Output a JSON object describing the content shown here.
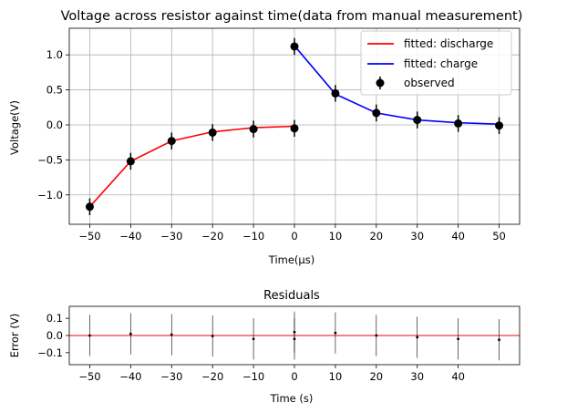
{
  "chart_data": [
    {
      "type": "line",
      "title": "Voltage across resistor against time(data from manual measurement)",
      "xlabel": "Time(μs)",
      "ylabel": "Voltage(V)",
      "xlim": [
        -55,
        55
      ],
      "ylim": [
        -1.42,
        1.38
      ],
      "xticks": [
        -50,
        -40,
        -30,
        -20,
        -10,
        0,
        10,
        20,
        30,
        40,
        50
      ],
      "xtick_labels": [
        "−50",
        "−40",
        "−30",
        "−20",
        "−10",
        "0",
        "10",
        "20",
        "30",
        "40",
        "50"
      ],
      "yticks": [
        -1.0,
        -0.5,
        0.0,
        0.5,
        1.0
      ],
      "ytick_labels": [
        "−1.0",
        "−0.5",
        "0.0",
        "0.5",
        "1.0"
      ],
      "grid": true,
      "legend_position": "top-right",
      "series": [
        {
          "name": "fitted: discharge",
          "kind": "line",
          "color": "#ff0000",
          "x": [
            -50,
            -40,
            -30,
            -20,
            -10,
            0
          ],
          "y": [
            -1.17,
            -0.52,
            -0.23,
            -0.1,
            -0.04,
            -0.02
          ]
        },
        {
          "name": "fitted: charge",
          "kind": "line",
          "color": "#0000ff",
          "x": [
            0,
            10,
            20,
            30,
            40,
            50
          ],
          "y": [
            1.13,
            0.44,
            0.17,
            0.07,
            0.03,
            0.01
          ]
        },
        {
          "name": "observed",
          "kind": "errorbar",
          "color": "#000000",
          "x": [
            -50,
            -40,
            -30,
            -20,
            -10,
            0,
            0,
            10,
            20,
            30,
            40,
            50
          ],
          "y": [
            -1.17,
            -0.52,
            -0.23,
            -0.11,
            -0.06,
            -0.05,
            1.12,
            0.45,
            0.17,
            0.07,
            0.02,
            -0.01
          ],
          "yerr": 0.12
        }
      ]
    },
    {
      "type": "scatter",
      "title": "Residuals",
      "xlabel": "Time (s)",
      "ylabel": "Error (V)",
      "xlim": [
        -55,
        55
      ],
      "ylim": [
        -0.17,
        0.17
      ],
      "xticks": [
        -50,
        -40,
        -30,
        -20,
        -10,
        0,
        10,
        20,
        30,
        40
      ],
      "xtick_labels": [
        "−50",
        "−40",
        "−30",
        "−20",
        "−10",
        "0",
        "10",
        "20",
        "30",
        "40"
      ],
      "yticks": [
        -0.1,
        0.0,
        0.1
      ],
      "ytick_labels": [
        "−0.1",
        "0.0",
        "0.1"
      ],
      "zero_line_color": "#ff0000",
      "series": [
        {
          "name": "residuals",
          "kind": "errorbar",
          "color": "#000000",
          "x": [
            -50,
            -40,
            -30,
            -20,
            -10,
            0,
            0,
            10,
            20,
            30,
            40,
            50
          ],
          "y": [
            0.0,
            0.01,
            0.005,
            -0.003,
            -0.02,
            -0.02,
            0.02,
            0.015,
            0.0,
            -0.01,
            -0.02,
            -0.025
          ],
          "yerr": 0.12
        }
      ]
    }
  ]
}
